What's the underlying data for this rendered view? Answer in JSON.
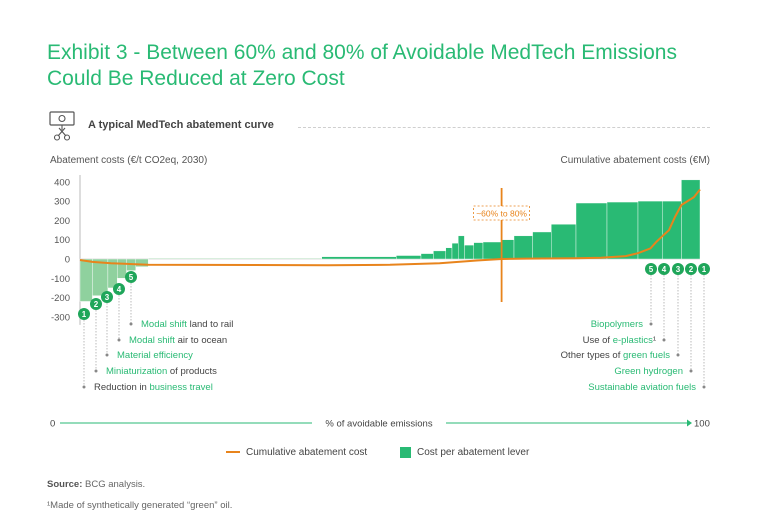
{
  "header": {
    "title": "Exhibit 3 - Between 60% and 80% of Avoidable MedTech Emissions Could Be Reduced at Zero Cost",
    "subtitle": "A typical MedTech abatement curve",
    "icon": "money-scissors-icon"
  },
  "chart_data": {
    "type": "bar",
    "title": "A typical MedTech abatement curve",
    "ylabel_left": "Abatement costs (€/t CO2eq, 2030)",
    "ylabel_right": "Cumulative abatement costs (€M)",
    "xlabel": "% of avoidable emissions",
    "x_start_label": "0",
    "x_end_label": "100",
    "xlim": [
      0,
      100
    ],
    "ylim": [
      -350,
      420
    ],
    "yticks": [
      400,
      300,
      200,
      100,
      0,
      -100,
      -200,
      -300
    ],
    "zero_cost_band_label": "~60% to 80%",
    "zero_cost_band_x": 68,
    "series": [
      {
        "name": "Cost per abatement lever",
        "color": "#29ba74",
        "bars": [
          {
            "x0": 0.0,
            "x1": 2.0,
            "value": -220,
            "light": true
          },
          {
            "x0": 2.0,
            "x1": 4.5,
            "value": -190,
            "light": true
          },
          {
            "x0": 4.5,
            "x1": 6.0,
            "value": -150,
            "light": true
          },
          {
            "x0": 6.0,
            "x1": 7.5,
            "value": -100,
            "light": true
          },
          {
            "x0": 7.5,
            "x1": 9.0,
            "value": -60,
            "light": true
          },
          {
            "x0": 9.0,
            "x1": 11.0,
            "value": -40,
            "light": true
          },
          {
            "x0": 11.0,
            "x1": 39.0,
            "value": 4,
            "light": true
          },
          {
            "x0": 39.0,
            "x1": 51.0,
            "value": 12
          },
          {
            "x0": 51.0,
            "x1": 55.0,
            "value": 18
          },
          {
            "x0": 55.0,
            "x1": 57.0,
            "value": 28
          },
          {
            "x0": 57.0,
            "x1": 59.0,
            "value": 42
          },
          {
            "x0": 59.0,
            "x1": 60.0,
            "value": 58
          },
          {
            "x0": 60.0,
            "x1": 61.0,
            "value": 82
          },
          {
            "x0": 61.0,
            "x1": 62.0,
            "value": 120
          },
          {
            "x0": 62.0,
            "x1": 63.5,
            "value": 72
          },
          {
            "x0": 63.5,
            "x1": 65.0,
            "value": 85
          },
          {
            "x0": 65.0,
            "x1": 68.0,
            "value": 88
          },
          {
            "x0": 68.0,
            "x1": 70.0,
            "value": 100
          },
          {
            "x0": 70.0,
            "x1": 73.0,
            "value": 120
          },
          {
            "x0": 73.0,
            "x1": 76.0,
            "value": 140
          },
          {
            "x0": 76.0,
            "x1": 80.0,
            "value": 180
          },
          {
            "x0": 80.0,
            "x1": 85.0,
            "value": 290
          },
          {
            "x0": 85.0,
            "x1": 90.0,
            "value": 295
          },
          {
            "x0": 90.0,
            "x1": 94.0,
            "value": 300
          },
          {
            "x0": 94.0,
            "x1": 97.0,
            "value": 300
          },
          {
            "x0": 97.0,
            "x1": 100.0,
            "value": 410
          }
        ]
      },
      {
        "name": "Cumulative abatement cost",
        "color": "#e8841c",
        "points": [
          [
            0,
            -5
          ],
          [
            2,
            -15
          ],
          [
            5,
            -22
          ],
          [
            8,
            -26
          ],
          [
            11,
            -30
          ],
          [
            40,
            -32
          ],
          [
            50,
            -30
          ],
          [
            58,
            -22
          ],
          [
            64,
            -8
          ],
          [
            68,
            0
          ],
          [
            72,
            2
          ],
          [
            80,
            4
          ],
          [
            84,
            6
          ],
          [
            88,
            15
          ],
          [
            90,
            30
          ],
          [
            92,
            55
          ],
          [
            93,
            90
          ],
          [
            94,
            120
          ],
          [
            95,
            150
          ],
          [
            96,
            220
          ],
          [
            97,
            280
          ],
          [
            98,
            300
          ],
          [
            99,
            320
          ],
          [
            100,
            360
          ]
        ]
      }
    ],
    "left_levers": [
      {
        "num": "1",
        "highlight": "",
        "rest": "Reduction in ",
        "highlight_after": "business travel"
      },
      {
        "num": "2",
        "highlight": "Miniaturization",
        "rest": " of products",
        "highlight_after": ""
      },
      {
        "num": "3",
        "highlight": "Material efficiency",
        "rest": "",
        "highlight_after": ""
      },
      {
        "num": "4",
        "highlight": "Modal shift",
        "rest": " air to ocean",
        "highlight_after": ""
      },
      {
        "num": "5",
        "highlight": "Modal shift",
        "rest": " land to rail",
        "highlight_after": ""
      }
    ],
    "right_levers": [
      {
        "num": "5",
        "pre": "",
        "highlight": "Biopolymers",
        "post": ""
      },
      {
        "num": "4",
        "pre": "Use of ",
        "highlight": "e-plastics",
        "post": "¹"
      },
      {
        "num": "3",
        "pre": "Other types of ",
        "highlight": "green fuels",
        "post": ""
      },
      {
        "num": "2",
        "pre": "",
        "highlight": "Green hydrogen",
        "post": ""
      },
      {
        "num": "1",
        "pre": "",
        "highlight": "Sustainable aviation fuels",
        "post": ""
      }
    ],
    "legend": [
      {
        "label": "Cumulative abatement cost",
        "kind": "line"
      },
      {
        "label": "Cost per abatement lever",
        "kind": "box"
      }
    ]
  },
  "colors": {
    "accent": "#29ba74",
    "light_green": "#8fd19e",
    "orange": "#e8841c",
    "marker": "#1fa65a"
  },
  "footer": {
    "source_label": "Source:",
    "source_text": " BCG analysis.",
    "note": "¹Made of synthetically generated “green” oil."
  }
}
